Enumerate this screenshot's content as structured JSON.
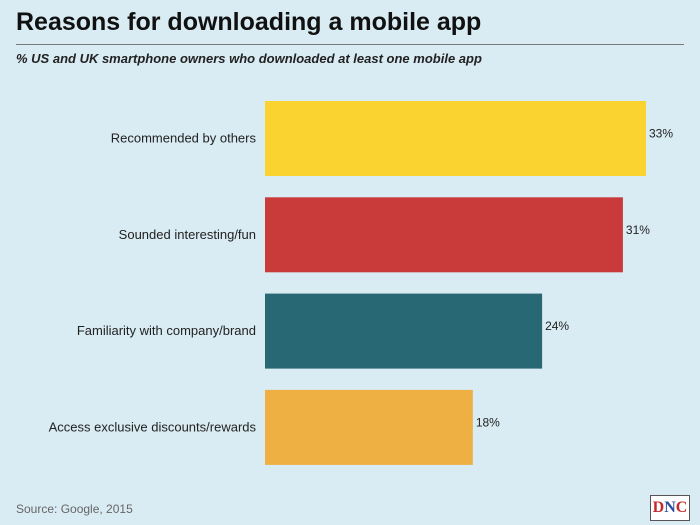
{
  "title": "Reasons for downloading a mobile app",
  "subtitle": "% US and UK smartphone owners who downloaded at least one mobile app",
  "source": "Source: Google, 2015",
  "logo": {
    "d": "D",
    "n": "N",
    "c": "C"
  },
  "chart_data": {
    "type": "bar",
    "orientation": "horizontal",
    "categories": [
      "Recommended by others",
      "Sounded interesting/fun",
      "Familiarity with company/brand",
      "Access exclusive discounts/rewards"
    ],
    "values": [
      33,
      31,
      24,
      18
    ],
    "value_labels": [
      "33%",
      "31%",
      "24%",
      "18%"
    ],
    "colors": [
      "#fbd331",
      "#c93a3a",
      "#276874",
      "#eeb042"
    ],
    "xlim": [
      0,
      33
    ],
    "grid": false,
    "legend": "none"
  }
}
